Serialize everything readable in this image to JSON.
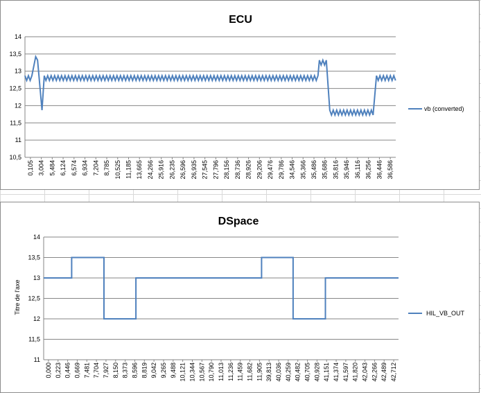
{
  "chart_data": [
    {
      "type": "line",
      "title": "ECU",
      "xlabel": "",
      "ylabel": "",
      "ylim": [
        10.5,
        14
      ],
      "yticks": [
        "10,5",
        "11",
        "11,5",
        "12",
        "12,5",
        "13",
        "13,5",
        "14"
      ],
      "grid": true,
      "legend_position": "right",
      "series_color": "#4f81bd",
      "categories": [
        "0,105",
        "3,004",
        "5,484",
        "6,124",
        "6,574",
        "6,934",
        "7,204",
        "8,785",
        "10,525",
        "11,185",
        "13,665",
        "24,266",
        "25,916",
        "26,235",
        "26,596",
        "26,935",
        "27,545",
        "27,796",
        "28,156",
        "28,736",
        "28,926",
        "29,206",
        "29,476",
        "29,786",
        "34,546",
        "35,366",
        "35,486",
        "35,686",
        "35,816",
        "35,946",
        "36,116",
        "36,256",
        "36,446",
        "36,586"
      ],
      "series": [
        {
          "name": "vb (converted)",
          "segments": [
            {
              "from": 0,
              "to": 0.022,
              "level": 12.8,
              "ripple": 0.07
            },
            {
              "at": 0.029,
              "value": 13.42
            },
            {
              "at": 0.034,
              "value": 13.32
            },
            {
              "at": 0.046,
              "value": 11.87
            },
            {
              "at": 0.052,
              "value": 12.85
            },
            {
              "from": 0.052,
              "to": 0.794,
              "level": 12.8,
              "ripple": 0.07
            },
            {
              "from": 0.794,
              "to": 0.816,
              "level": 13.25,
              "ripple": 0.07
            },
            {
              "from": 0.822,
              "to": 0.941,
              "level": 11.8,
              "ripple": 0.07
            },
            {
              "from": 0.948,
              "to": 1.0,
              "level": 12.8,
              "ripple": 0.07
            }
          ]
        }
      ]
    },
    {
      "type": "line",
      "title": "DSpace",
      "xlabel": "",
      "ylabel": "Titre de l'axe",
      "ylim": [
        11,
        14
      ],
      "yticks": [
        "11",
        "11,5",
        "12",
        "12,5",
        "13",
        "13,5",
        "14"
      ],
      "grid": true,
      "legend_position": "right",
      "series_color": "#4f81bd",
      "categories": [
        "0,000",
        "0,223",
        "0,446",
        "0,669",
        "7,481",
        "7,704",
        "7,927",
        "8,150",
        "8,373",
        "8,596",
        "8,819",
        "9,042",
        "9,265",
        "9,488",
        "10,121",
        "10,344",
        "10,567",
        "10,790",
        "11,013",
        "11,236",
        "11,459",
        "11,682",
        "11,905",
        "39,813",
        "40,036",
        "40,259",
        "40,482",
        "40,705",
        "40,928",
        "41,151",
        "41,374",
        "41,597",
        "41,820",
        "42,043",
        "42,266",
        "42,489",
        "42,712"
      ],
      "series": [
        {
          "name": "HIL_VB_OUT",
          "steps": [
            {
              "x": 0.0,
              "value": 13
            },
            {
              "x": 0.079,
              "value": 13.5
            },
            {
              "x": 0.17,
              "value": 12
            },
            {
              "x": 0.26,
              "value": 13
            },
            {
              "x": 0.614,
              "value": 13.5
            },
            {
              "x": 0.703,
              "value": 12
            },
            {
              "x": 0.794,
              "value": 13
            },
            {
              "x": 1.0,
              "value": 13
            }
          ]
        }
      ]
    }
  ]
}
